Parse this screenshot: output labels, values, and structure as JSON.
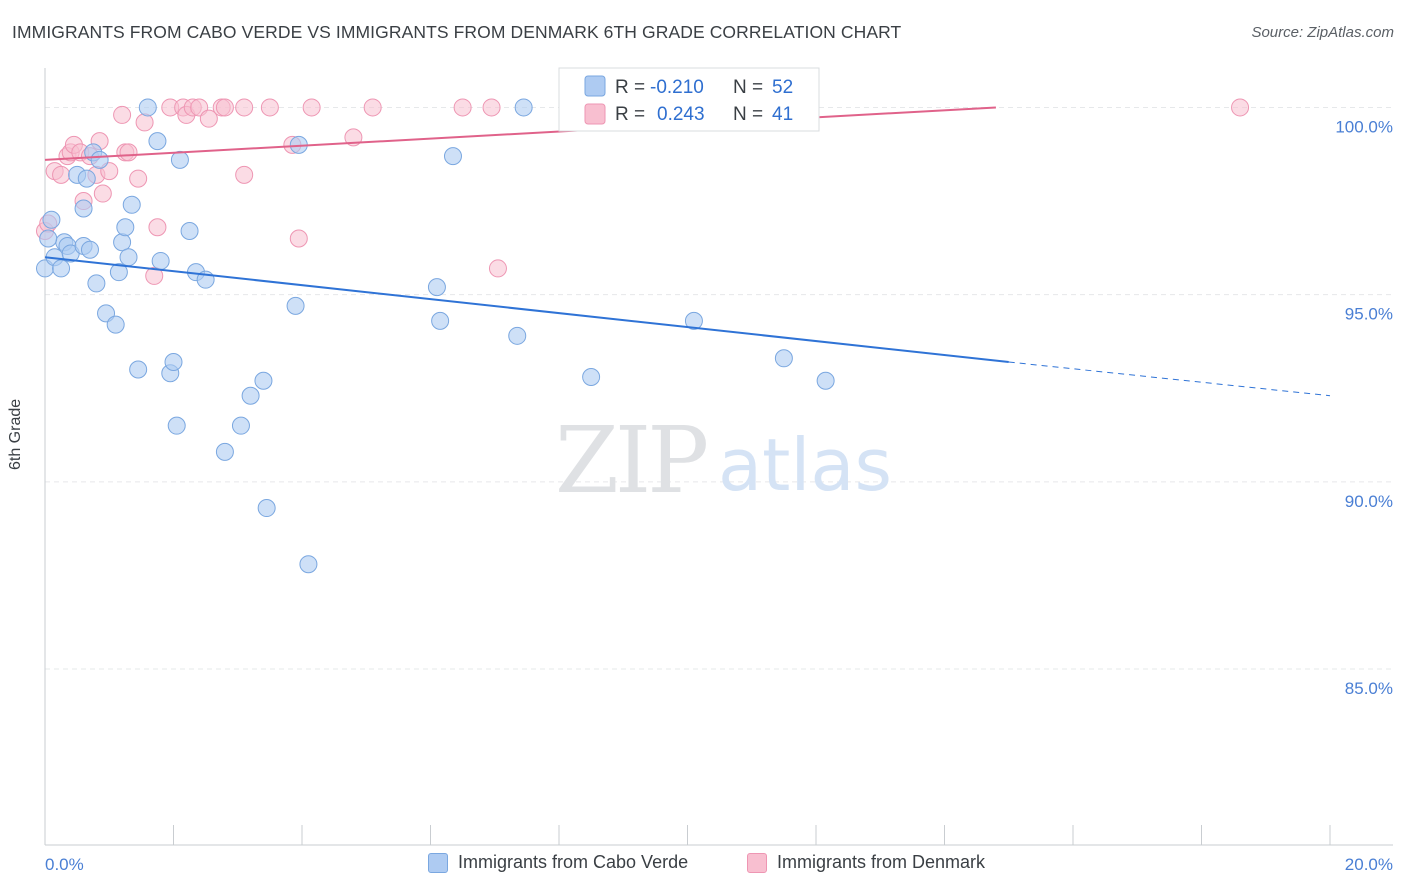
{
  "title": "IMMIGRANTS FROM CABO VERDE VS IMMIGRANTS FROM DENMARK 6TH GRADE CORRELATION CHART",
  "source": "Source: ZipAtlas.com",
  "watermark": {
    "zip": "ZIP",
    "atlas": "atlas"
  },
  "colors": {
    "blue_fill": "#aecbf2",
    "blue_stroke": "#7aa7e0",
    "blue_line": "#2f73d6",
    "pink_fill": "#f8bfd0",
    "pink_stroke": "#ee96b3",
    "pink_line": "#e0628a",
    "tick_text": "#4a7fd4",
    "grid": "#e6e8ea"
  },
  "legend": {
    "rows": [
      {
        "r_label": "R =",
        "r_value": "-0.210",
        "n_label": "N =",
        "n_value": "52"
      },
      {
        "r_label": "R =",
        "r_value": "0.243",
        "n_label": "N =",
        "n_value": "41"
      }
    ]
  },
  "bottom_legend": {
    "items": [
      {
        "label": "Immigrants from Cabo Verde"
      },
      {
        "label": "Immigrants from Denmark"
      }
    ]
  },
  "chart_data": {
    "type": "scatter",
    "title": "IMMIGRANTS FROM CABO VERDE VS IMMIGRANTS FROM DENMARK 6TH GRADE CORRELATION CHART",
    "xlabel": "",
    "ylabel": "6th Grade",
    "xlim": [
      0,
      20
    ],
    "ylim": [
      80.3,
      101.0
    ],
    "x_tick_labels": [
      "0.0%",
      "20.0%"
    ],
    "y_ticks": [
      100,
      95,
      90,
      85
    ],
    "y_tick_labels": [
      "100.0%",
      "95.0%",
      "90.0%",
      "85.0%"
    ],
    "series": [
      {
        "name": "Immigrants from Cabo Verde",
        "r": -0.21,
        "n": 52,
        "trend": {
          "x0": 0,
          "y0": 96.0,
          "x1": 15.0,
          "y1": 93.2,
          "dash_to_x": 20.0,
          "dash_to_y": 92.3
        },
        "points": [
          [
            0.0,
            95.7
          ],
          [
            0.1,
            97.0
          ],
          [
            0.15,
            96.0
          ],
          [
            0.25,
            95.7
          ],
          [
            0.3,
            96.4
          ],
          [
            0.35,
            96.3
          ],
          [
            0.4,
            96.1
          ],
          [
            0.5,
            98.2
          ],
          [
            0.6,
            96.3
          ],
          [
            0.6,
            97.3
          ],
          [
            0.65,
            98.1
          ],
          [
            0.7,
            96.2
          ],
          [
            0.75,
            98.8
          ],
          [
            0.8,
            95.3
          ],
          [
            0.85,
            98.6
          ],
          [
            0.95,
            94.5
          ],
          [
            1.1,
            94.2
          ],
          [
            1.15,
            95.6
          ],
          [
            1.2,
            96.4
          ],
          [
            1.25,
            96.8
          ],
          [
            1.3,
            96.0
          ],
          [
            1.35,
            97.4
          ],
          [
            1.45,
            93.0
          ],
          [
            1.6,
            100.0
          ],
          [
            1.75,
            99.1
          ],
          [
            1.8,
            95.9
          ],
          [
            1.95,
            92.9
          ],
          [
            2.0,
            93.2
          ],
          [
            2.05,
            91.5
          ],
          [
            2.1,
            98.6
          ],
          [
            2.25,
            96.7
          ],
          [
            2.35,
            95.6
          ],
          [
            2.5,
            95.4
          ],
          [
            2.8,
            90.8
          ],
          [
            3.05,
            91.5
          ],
          [
            3.2,
            92.3
          ],
          [
            3.4,
            92.7
          ],
          [
            3.45,
            89.3
          ],
          [
            3.9,
            94.7
          ],
          [
            3.95,
            99.0
          ],
          [
            4.1,
            87.8
          ],
          [
            6.1,
            95.2
          ],
          [
            6.15,
            94.3
          ],
          [
            6.35,
            98.7
          ],
          [
            7.35,
            93.9
          ],
          [
            7.45,
            100.0
          ],
          [
            8.5,
            92.8
          ],
          [
            8.7,
            100.0
          ],
          [
            10.1,
            94.3
          ],
          [
            11.5,
            93.3
          ],
          [
            12.15,
            92.7
          ],
          [
            0.05,
            96.5
          ]
        ]
      },
      {
        "name": "Immigrants from Denmark",
        "r": 0.243,
        "n": 41,
        "trend": {
          "x0": 0,
          "y0": 98.6,
          "x1": 14.8,
          "y1": 100.0
        },
        "points": [
          [
            0.0,
            96.7
          ],
          [
            0.15,
            98.3
          ],
          [
            0.25,
            98.2
          ],
          [
            0.35,
            98.7
          ],
          [
            0.4,
            98.8
          ],
          [
            0.45,
            99.0
          ],
          [
            0.55,
            98.8
          ],
          [
            0.6,
            97.5
          ],
          [
            0.7,
            98.7
          ],
          [
            0.8,
            98.2
          ],
          [
            0.85,
            99.1
          ],
          [
            0.9,
            97.7
          ],
          [
            1.0,
            98.3
          ],
          [
            1.2,
            99.8
          ],
          [
            1.25,
            98.8
          ],
          [
            1.3,
            98.8
          ],
          [
            1.45,
            98.1
          ],
          [
            1.55,
            99.6
          ],
          [
            1.7,
            95.5
          ],
          [
            1.75,
            96.8
          ],
          [
            1.95,
            100.0
          ],
          [
            2.15,
            100.0
          ],
          [
            2.2,
            99.8
          ],
          [
            2.3,
            100.0
          ],
          [
            2.4,
            100.0
          ],
          [
            2.55,
            99.7
          ],
          [
            2.75,
            100.0
          ],
          [
            2.8,
            100.0
          ],
          [
            3.1,
            100.0
          ],
          [
            3.1,
            98.2
          ],
          [
            3.5,
            100.0
          ],
          [
            3.85,
            99.0
          ],
          [
            3.95,
            96.5
          ],
          [
            4.15,
            100.0
          ],
          [
            4.8,
            99.2
          ],
          [
            5.1,
            100.0
          ],
          [
            6.5,
            100.0
          ],
          [
            6.95,
            100.0
          ],
          [
            7.05,
            95.7
          ],
          [
            18.6,
            100.0
          ],
          [
            0.05,
            96.9
          ]
        ]
      }
    ]
  }
}
